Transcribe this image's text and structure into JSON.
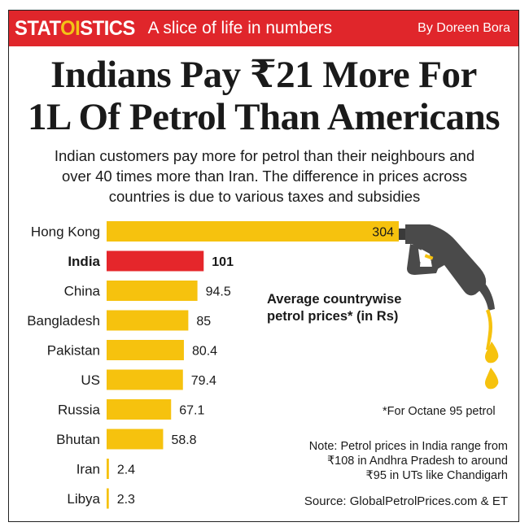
{
  "header": {
    "brand_part1": "STAT",
    "brand_part2": "OI",
    "brand_part3": "STICS",
    "tagline": "A slice of life in numbers",
    "byline": "By Doreen Bora"
  },
  "headline": {
    "line1": "Indians Pay ₹21 More For",
    "line2": "1L Of Petrol Than Americans"
  },
  "subtitle": {
    "line1": "Indian customers pay more for petrol than their neighbours and",
    "line2": "over 40 times more than Iran. The difference in prices across",
    "line3": "countries is due to various taxes and subsidies"
  },
  "legend": {
    "line1": "Average countrywise",
    "line2": "petrol prices* (in Rs)"
  },
  "footnote": "*For Octane 95 petrol",
  "note": {
    "line1": "Note: Petrol prices in India range from",
    "line2": "₹108 in Andhra Pradesh to around",
    "line3": "₹95 in UTs like Chandigarh"
  },
  "source": "Source: GlobalPetrolPrices.com & ET",
  "colors": {
    "brand_red": "#e0262b",
    "brand_yellow": "#f3c316",
    "bar_default": "#f6c20e",
    "bar_highlight": "#e5262b",
    "text_highlight": "#e0262b",
    "nozzle": "#4a4a4a"
  },
  "chart_data": {
    "type": "bar",
    "orientation": "horizontal",
    "categories": [
      "Hong Kong",
      "India",
      "China",
      "Bangladesh",
      "Pakistan",
      "US",
      "Russia",
      "Bhutan",
      "Iran",
      "Libya"
    ],
    "values": [
      304,
      101,
      94.5,
      85,
      80.4,
      79.4,
      67.1,
      58.8,
      2.4,
      2.3
    ],
    "value_labels": [
      "304",
      "101",
      "94.5",
      "85",
      "80.4",
      "79.4",
      "67.1",
      "58.8",
      "2.4",
      "2.3"
    ],
    "highlight": "India",
    "xlim": [
      0,
      304
    ],
    "grid": false
  }
}
